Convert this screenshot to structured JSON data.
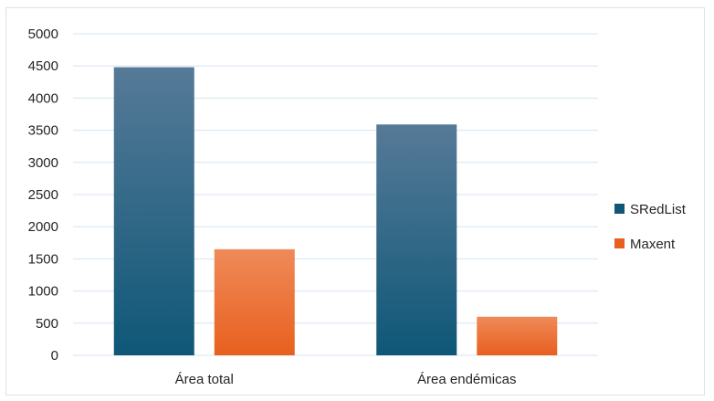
{
  "chart_data": {
    "type": "bar",
    "title": "",
    "xlabel": "",
    "ylabel": "",
    "categories": [
      "Área total",
      "Área endémicas"
    ],
    "series": [
      {
        "name": "SRedList",
        "values": [
          4480,
          3590
        ],
        "color_top": "#567a98",
        "color_bottom": "#0f5777"
      },
      {
        "name": "Maxent",
        "values": [
          1650,
          600
        ],
        "color_top": "#ef8a59",
        "color_bottom": "#e8601f"
      }
    ],
    "ylim": [
      0,
      5000
    ],
    "yticks": [
      0,
      500,
      1000,
      1500,
      2000,
      2500,
      3000,
      3500,
      4000,
      4500,
      5000
    ],
    "grid": true,
    "legend_position": "right"
  }
}
